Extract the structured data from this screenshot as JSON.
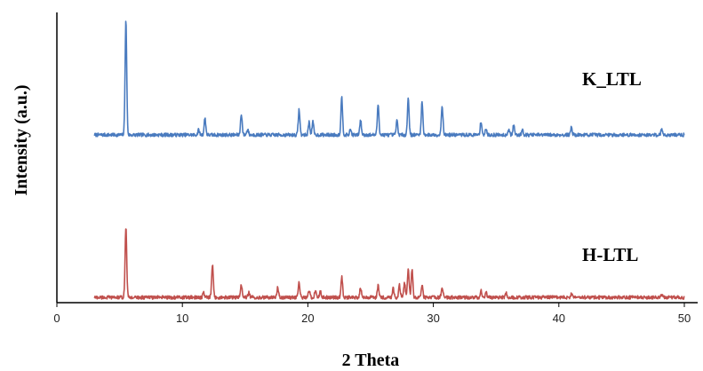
{
  "chart_data": {
    "type": "line",
    "title": "",
    "xlabel": "2 Theta",
    "ylabel": "Intensity (a.u.)",
    "xlim": [
      0,
      50
    ],
    "xticks": [
      0,
      10,
      20,
      30,
      40,
      50
    ],
    "xtick_labels": [
      "0",
      "10",
      "20",
      "30",
      "40",
      "50"
    ],
    "ylim": [
      0,
      1
    ],
    "grid": false,
    "x_range": [
      3,
      50
    ],
    "series": [
      {
        "name": "K_LTL",
        "color": "#4a7bbf",
        "baseline": 0.578,
        "peaks": [
          {
            "x": 5.5,
            "y": 0.97
          },
          {
            "x": 11.3,
            "y": 0.595
          },
          {
            "x": 11.8,
            "y": 0.636
          },
          {
            "x": 14.7,
            "y": 0.65
          },
          {
            "x": 15.2,
            "y": 0.598
          },
          {
            "x": 19.3,
            "y": 0.665
          },
          {
            "x": 20.1,
            "y": 0.622
          },
          {
            "x": 20.4,
            "y": 0.622
          },
          {
            "x": 22.7,
            "y": 0.707
          },
          {
            "x": 23.4,
            "y": 0.597
          },
          {
            "x": 24.2,
            "y": 0.628
          },
          {
            "x": 25.6,
            "y": 0.683
          },
          {
            "x": 27.1,
            "y": 0.626
          },
          {
            "x": 28.0,
            "y": 0.705
          },
          {
            "x": 29.1,
            "y": 0.69
          },
          {
            "x": 30.7,
            "y": 0.68
          },
          {
            "x": 33.8,
            "y": 0.624
          },
          {
            "x": 34.2,
            "y": 0.597
          },
          {
            "x": 36.0,
            "y": 0.597
          },
          {
            "x": 36.4,
            "y": 0.61
          },
          {
            "x": 37.1,
            "y": 0.597
          },
          {
            "x": 41.0,
            "y": 0.604
          },
          {
            "x": 48.2,
            "y": 0.597
          }
        ]
      },
      {
        "name": "H-LTL",
        "color": "#c0504d",
        "baseline": 0.018,
        "peaks": [
          {
            "x": 5.5,
            "y": 0.26
          },
          {
            "x": 11.7,
            "y": 0.035
          },
          {
            "x": 12.4,
            "y": 0.13
          },
          {
            "x": 14.7,
            "y": 0.062
          },
          {
            "x": 15.3,
            "y": 0.035
          },
          {
            "x": 17.6,
            "y": 0.052
          },
          {
            "x": 19.3,
            "y": 0.07
          },
          {
            "x": 20.1,
            "y": 0.04
          },
          {
            "x": 20.6,
            "y": 0.042
          },
          {
            "x": 21.0,
            "y": 0.038
          },
          {
            "x": 22.7,
            "y": 0.09
          },
          {
            "x": 24.2,
            "y": 0.052
          },
          {
            "x": 25.6,
            "y": 0.06
          },
          {
            "x": 26.8,
            "y": 0.05
          },
          {
            "x": 27.3,
            "y": 0.06
          },
          {
            "x": 27.7,
            "y": 0.07
          },
          {
            "x": 28.0,
            "y": 0.118
          },
          {
            "x": 28.3,
            "y": 0.112
          },
          {
            "x": 29.1,
            "y": 0.058
          },
          {
            "x": 30.7,
            "y": 0.055
          },
          {
            "x": 33.8,
            "y": 0.042
          },
          {
            "x": 34.2,
            "y": 0.035
          },
          {
            "x": 35.8,
            "y": 0.033
          },
          {
            "x": 41.0,
            "y": 0.03
          },
          {
            "x": 48.2,
            "y": 0.028
          }
        ]
      }
    ]
  }
}
